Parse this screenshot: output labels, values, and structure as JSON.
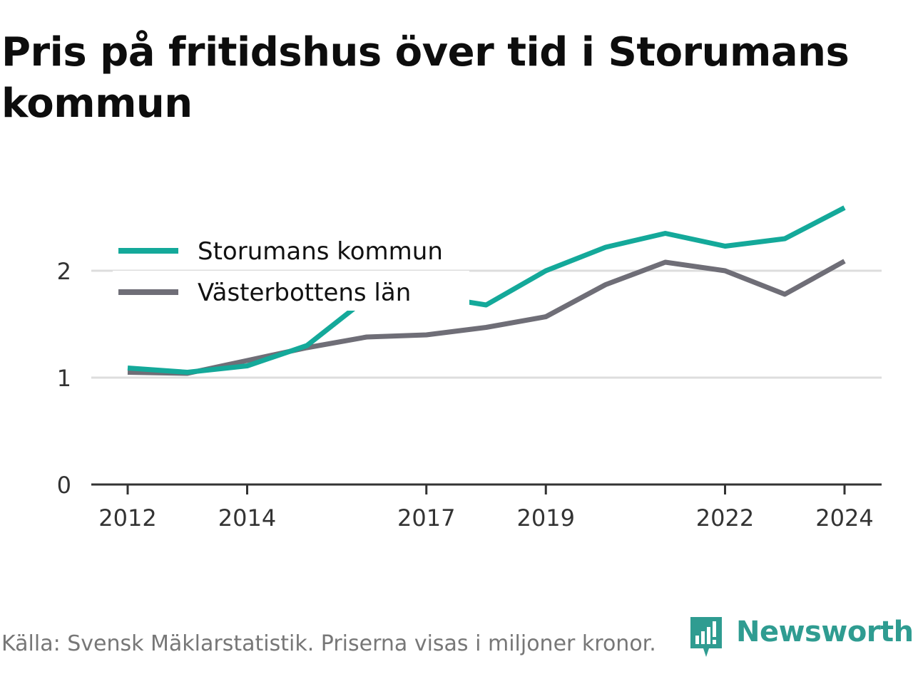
{
  "title": "Pris på fritidshus över tid i Storumans kommun",
  "source": "Källa: Svensk Mäklarstatistik. Priserna visas i miljoner kronor.",
  "brand": {
    "name": "Newsworthy",
    "icon": "newsworthy-logo-icon",
    "color": "#2f9c91"
  },
  "chart_data": {
    "type": "line",
    "x": [
      2012,
      2013,
      2014,
      2015,
      2016,
      2017,
      2018,
      2019,
      2020,
      2021,
      2022,
      2023,
      2024
    ],
    "x_tick_labels": [
      "2012",
      "2014",
      "2017",
      "2019",
      "2022",
      "2024"
    ],
    "y_ticks": [
      0,
      1,
      2
    ],
    "ylim": [
      0,
      2.6
    ],
    "grid": true,
    "legend_position": "top-left",
    "series": [
      {
        "name": "Storumans kommun",
        "color": "#14a99a",
        "values": [
          1.09,
          1.05,
          1.11,
          1.3,
          1.74,
          1.77,
          1.68,
          2.0,
          2.22,
          2.35,
          2.23,
          2.3,
          2.59
        ]
      },
      {
        "name": "Västerbottens län",
        "color": "#6f6e77",
        "values": [
          1.05,
          1.04,
          1.16,
          1.28,
          1.38,
          1.4,
          1.47,
          1.57,
          1.87,
          2.08,
          2.0,
          1.78,
          2.09
        ]
      }
    ]
  }
}
